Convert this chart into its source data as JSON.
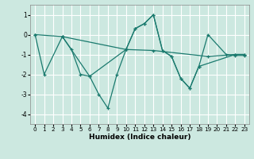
{
  "xlabel": "Humidex (Indice chaleur)",
  "bg_color": "#cce8e0",
  "grid_color": "#ffffff",
  "line_color": "#1a7a6e",
  "series1_x": [
    0,
    1,
    3,
    4,
    5,
    6,
    7,
    8,
    9,
    10,
    11,
    12,
    13,
    14,
    15,
    16,
    17,
    18,
    19,
    21,
    22,
    23
  ],
  "series1_y": [
    0.0,
    -2.0,
    -0.1,
    -0.75,
    -2.0,
    -2.1,
    -3.0,
    -3.7,
    -2.0,
    -0.75,
    0.3,
    0.55,
    1.0,
    -0.8,
    -1.1,
    -2.2,
    -2.7,
    -1.6,
    0.0,
    -1.0,
    -1.05,
    -1.05
  ],
  "series2_x": [
    0,
    3,
    10,
    13,
    19,
    22,
    23
  ],
  "series2_y": [
    0.0,
    -0.1,
    -0.75,
    -0.8,
    -1.1,
    -1.0,
    -1.0
  ],
  "series3_x": [
    3,
    6,
    10,
    11,
    12,
    13,
    14,
    15,
    16,
    17,
    18,
    22,
    23
  ],
  "series3_y": [
    -0.1,
    -2.1,
    -0.75,
    0.3,
    0.55,
    1.0,
    -0.8,
    -1.1,
    -2.2,
    -2.7,
    -1.6,
    -1.0,
    -1.0
  ],
  "ylim": [
    -4.5,
    1.5
  ],
  "xlim": [
    -0.5,
    23.5
  ],
  "yticks": [
    1,
    0,
    -1,
    -2,
    -3,
    -4
  ],
  "xticks": [
    0,
    1,
    2,
    3,
    4,
    5,
    6,
    7,
    8,
    9,
    10,
    11,
    12,
    13,
    14,
    15,
    16,
    17,
    18,
    19,
    20,
    21,
    22,
    23
  ]
}
